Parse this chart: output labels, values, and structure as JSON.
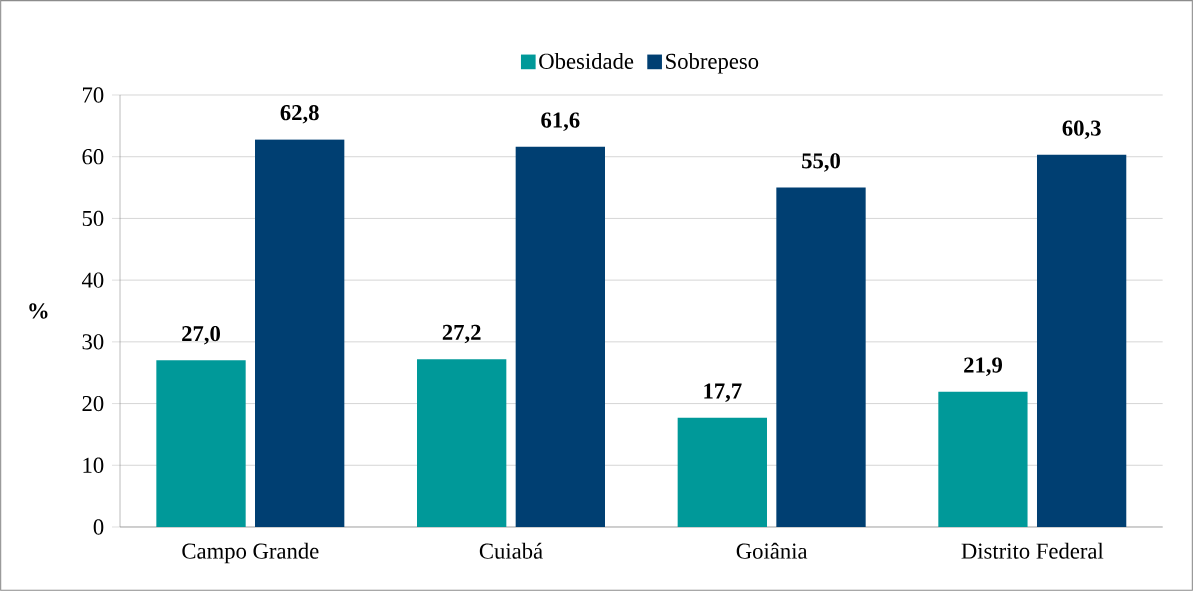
{
  "chart_data": {
    "type": "bar",
    "ylabel": "%",
    "categories": [
      "Campo Grande",
      "Cuiabá",
      "Goiânia",
      "Distrito Federal"
    ],
    "series": [
      {
        "name": "Obesidade",
        "color": "#009999",
        "values": [
          27.0,
          27.2,
          17.7,
          21.9
        ],
        "value_labels": [
          "27,0",
          "27,2",
          "17,7",
          "21,9"
        ]
      },
      {
        "name": "Sobrepeso",
        "color": "#003f72",
        "values": [
          62.8,
          61.6,
          55.0,
          60.3
        ],
        "value_labels": [
          "62,8",
          "61,6",
          "55,0",
          "60,3"
        ]
      }
    ],
    "ylim": [
      0,
      70
    ],
    "yticks": [
      0,
      10,
      20,
      30,
      40,
      50,
      60,
      70
    ],
    "grid": "y",
    "legend": "top"
  }
}
